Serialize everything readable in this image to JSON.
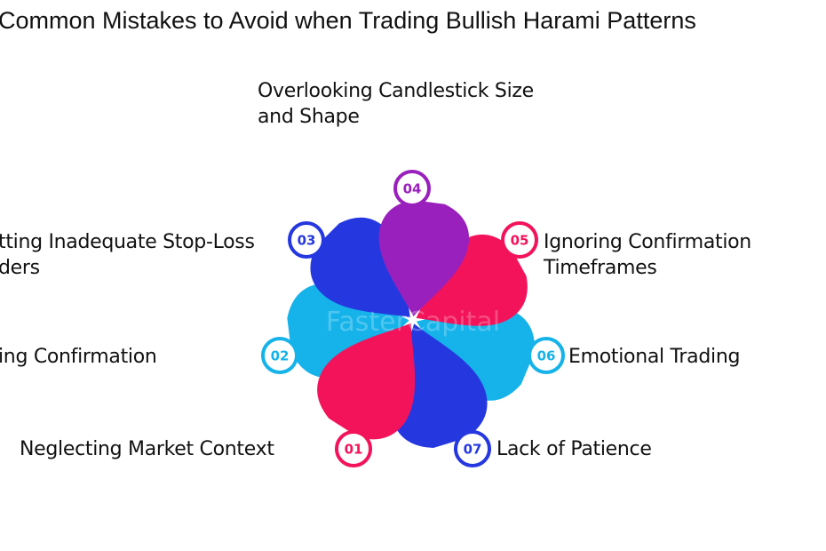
{
  "title": "Common Mistakes to Avoid when Trading Bullish Harami Patterns",
  "watermark": "FasterCapital",
  "colors": {
    "purple": "#9a20bd",
    "pink": "#f3135b",
    "blue": "#2538e0",
    "cyan": "#15b3ea"
  },
  "items": [
    {
      "num": "01",
      "label": "Neglecting Market Context",
      "color": "#f3135b"
    },
    {
      "num": "02",
      "label": "ing Confirmation",
      "color": "#15b3ea"
    },
    {
      "num": "03",
      "label_line1": "tting Inadequate Stop-Loss",
      "label_line2": "ders",
      "color": "#2538e0"
    },
    {
      "num": "04",
      "label_line1": "Overlooking Candlestick Size",
      "label_line2": "and Shape",
      "color": "#9a20bd"
    },
    {
      "num": "05",
      "label_line1": "Ignoring Confirmation",
      "label_line2": "Timeframes",
      "color": "#f3135b"
    },
    {
      "num": "06",
      "label": "Emotional Trading",
      "color": "#15b3ea"
    },
    {
      "num": "07",
      "label": "Lack of Patience",
      "color": "#2538e0"
    }
  ]
}
